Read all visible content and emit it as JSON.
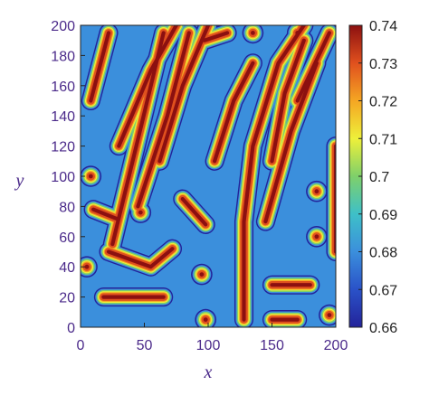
{
  "chart_data": {
    "type": "heatmap",
    "title": "",
    "xlabel": "x",
    "ylabel": "y",
    "xlim": [
      0,
      200
    ],
    "ylim": [
      0,
      200
    ],
    "x_ticks": [
      0,
      50,
      100,
      150,
      200
    ],
    "y_ticks": [
      0,
      20,
      40,
      60,
      80,
      100,
      120,
      140,
      160,
      180,
      200
    ],
    "colorbar": {
      "min": 0.66,
      "max": 0.74,
      "ticks": [
        0.66,
        0.67,
        0.68,
        0.69,
        0.7,
        0.71,
        0.72,
        0.73,
        0.74
      ],
      "tick_labels": [
        "0.66",
        "0.67",
        "0.68",
        "0.69",
        "0.7",
        "0.71",
        "0.72",
        "0.73",
        "0.74"
      ],
      "colormap": [
        "#23239a",
        "#2a52c8",
        "#3b8fdc",
        "#3ec0c8",
        "#7fd06a",
        "#eef03a",
        "#f5a623",
        "#e0501e",
        "#8c1010"
      ]
    },
    "pattern": {
      "description_free": true,
      "stripes": [
        {
          "points": [
            [
              8,
              150
            ],
            [
              22,
              195
            ]
          ]
        },
        {
          "points": [
            [
              25,
              55
            ],
            [
              48,
              135
            ],
            [
              65,
              195
            ]
          ]
        },
        {
          "points": [
            [
              30,
              120
            ],
            [
              55,
              170
            ],
            [
              75,
              200
            ]
          ]
        },
        {
          "points": [
            [
              45,
              80
            ],
            [
              68,
              140
            ],
            [
              85,
              195
            ]
          ]
        },
        {
          "points": [
            [
              62,
              110
            ],
            [
              80,
              160
            ],
            [
              100,
              200
            ]
          ]
        },
        {
          "points": [
            [
              105,
              110
            ],
            [
              120,
              150
            ],
            [
              135,
              175
            ]
          ]
        },
        {
          "points": [
            [
              128,
              5
            ],
            [
              128,
              70
            ],
            [
              135,
              120
            ],
            [
              155,
              175
            ],
            [
              175,
              200
            ]
          ]
        },
        {
          "points": [
            [
              150,
              110
            ],
            [
              160,
              155
            ],
            [
              175,
              190
            ]
          ]
        },
        {
          "points": [
            [
              145,
              70
            ],
            [
              165,
              130
            ],
            [
              185,
              175
            ]
          ]
        },
        {
          "points": [
            [
              170,
              150
            ],
            [
              195,
              195
            ]
          ]
        },
        {
          "points": [
            [
              18,
              20
            ],
            [
              65,
              20
            ]
          ]
        },
        {
          "points": [
            [
              22,
              50
            ],
            [
              55,
              40
            ],
            [
              72,
              52
            ]
          ]
        },
        {
          "points": [
            [
              10,
              78
            ],
            [
              28,
              72
            ]
          ]
        },
        {
          "points": [
            [
              80,
              85
            ],
            [
              98,
              68
            ]
          ]
        },
        {
          "points": [
            [
              150,
              28
            ],
            [
              180,
              28
            ]
          ]
        },
        {
          "points": [
            [
              150,
              5
            ],
            [
              170,
              5
            ]
          ]
        },
        {
          "points": [
            [
              200,
              50
            ],
            [
              200,
              120
            ]
          ]
        },
        {
          "points": [
            [
              97,
              190
            ],
            [
              115,
              195
            ]
          ]
        }
      ],
      "spots": [
        {
          "x": 47,
          "y": 76
        },
        {
          "x": 95,
          "y": 35
        },
        {
          "x": 98,
          "y": 5
        },
        {
          "x": 8,
          "y": 100
        },
        {
          "x": 5,
          "y": 40
        },
        {
          "x": 185,
          "y": 60
        },
        {
          "x": 185,
          "y": 90
        },
        {
          "x": 170,
          "y": 195
        },
        {
          "x": 135,
          "y": 195
        },
        {
          "x": 195,
          "y": 8
        }
      ]
    }
  }
}
